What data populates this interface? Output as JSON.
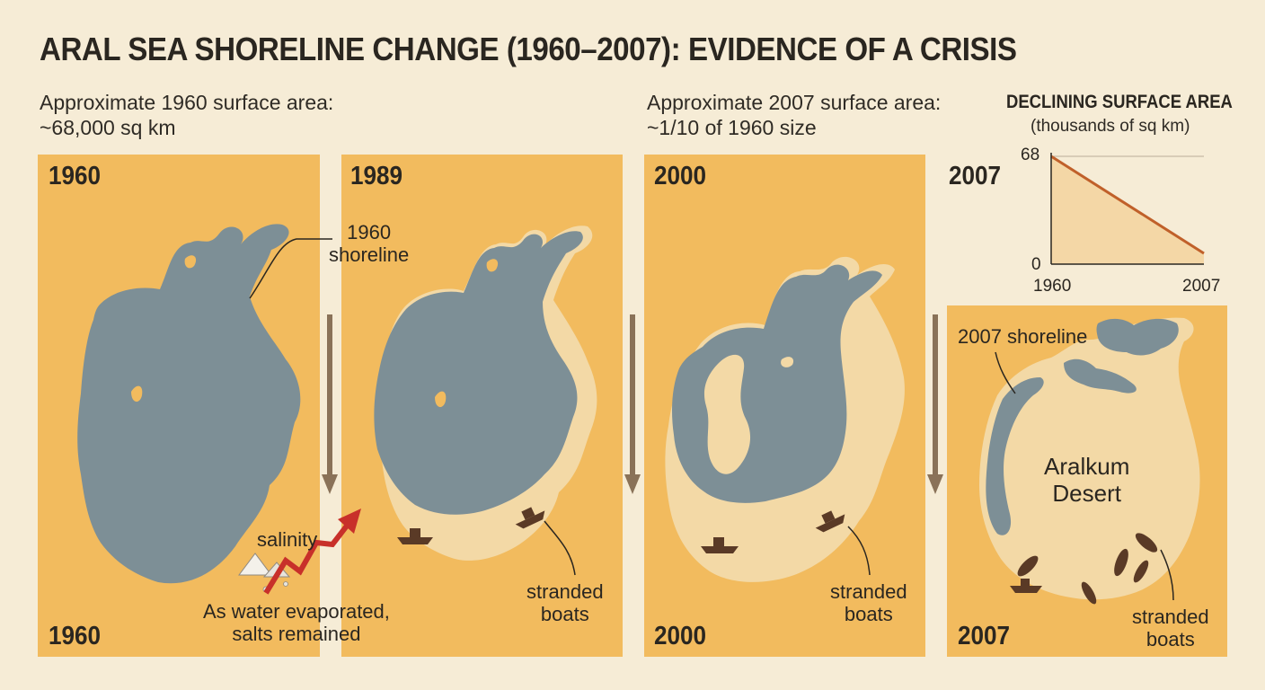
{
  "title": "ARAL SEA SHORELINE CHANGE (1960–2007): EVIDENCE OF A CRISIS",
  "notes": {
    "area_1960_line1": "Approximate 1960 surface area:",
    "area_1960_line2": "~68,000 sq km",
    "area_2007_line1": "Approximate 2007 surface area:",
    "area_2007_line2": "~1/10 of 1960 size"
  },
  "panels": [
    {
      "year_top": "1960",
      "year_bottom": "1960"
    },
    {
      "year_top": "1989"
    },
    {
      "year_top": "2000",
      "year_bottom": "2000"
    },
    {
      "year_top": "2007",
      "year_bottom": "2007"
    }
  ],
  "annotations": {
    "shoreline_1960_line1": "1960",
    "shoreline_1960_line2": "shoreline",
    "shoreline_2007": "2007 shoreline",
    "salinity": "salinity",
    "evaporated_line1": "As water evaporated,",
    "evaporated_line2": "salts remained",
    "stranded_line1": "stranded",
    "stranded_line2": "boats",
    "desert_line1": "Aralkum",
    "desert_line2": "Desert"
  },
  "colors": {
    "water": "#7d8f96",
    "dry_seabed": "#f3d9a6",
    "panel": "#f2bb5e",
    "trend_line": "#c0602a",
    "salinity_arrow": "#c8302a"
  },
  "chart_data": {
    "type": "area",
    "title": "DECLINING SURFACE AREA",
    "subtitle": "(thousands of sq km)",
    "x": [
      1960,
      2007
    ],
    "values": [
      68,
      6.8
    ],
    "xlim": [
      1960,
      2007
    ],
    "ylim": [
      0,
      68
    ],
    "x_ticks": [
      "1960",
      "2007"
    ],
    "y_ticks": [
      "0",
      "68"
    ]
  }
}
